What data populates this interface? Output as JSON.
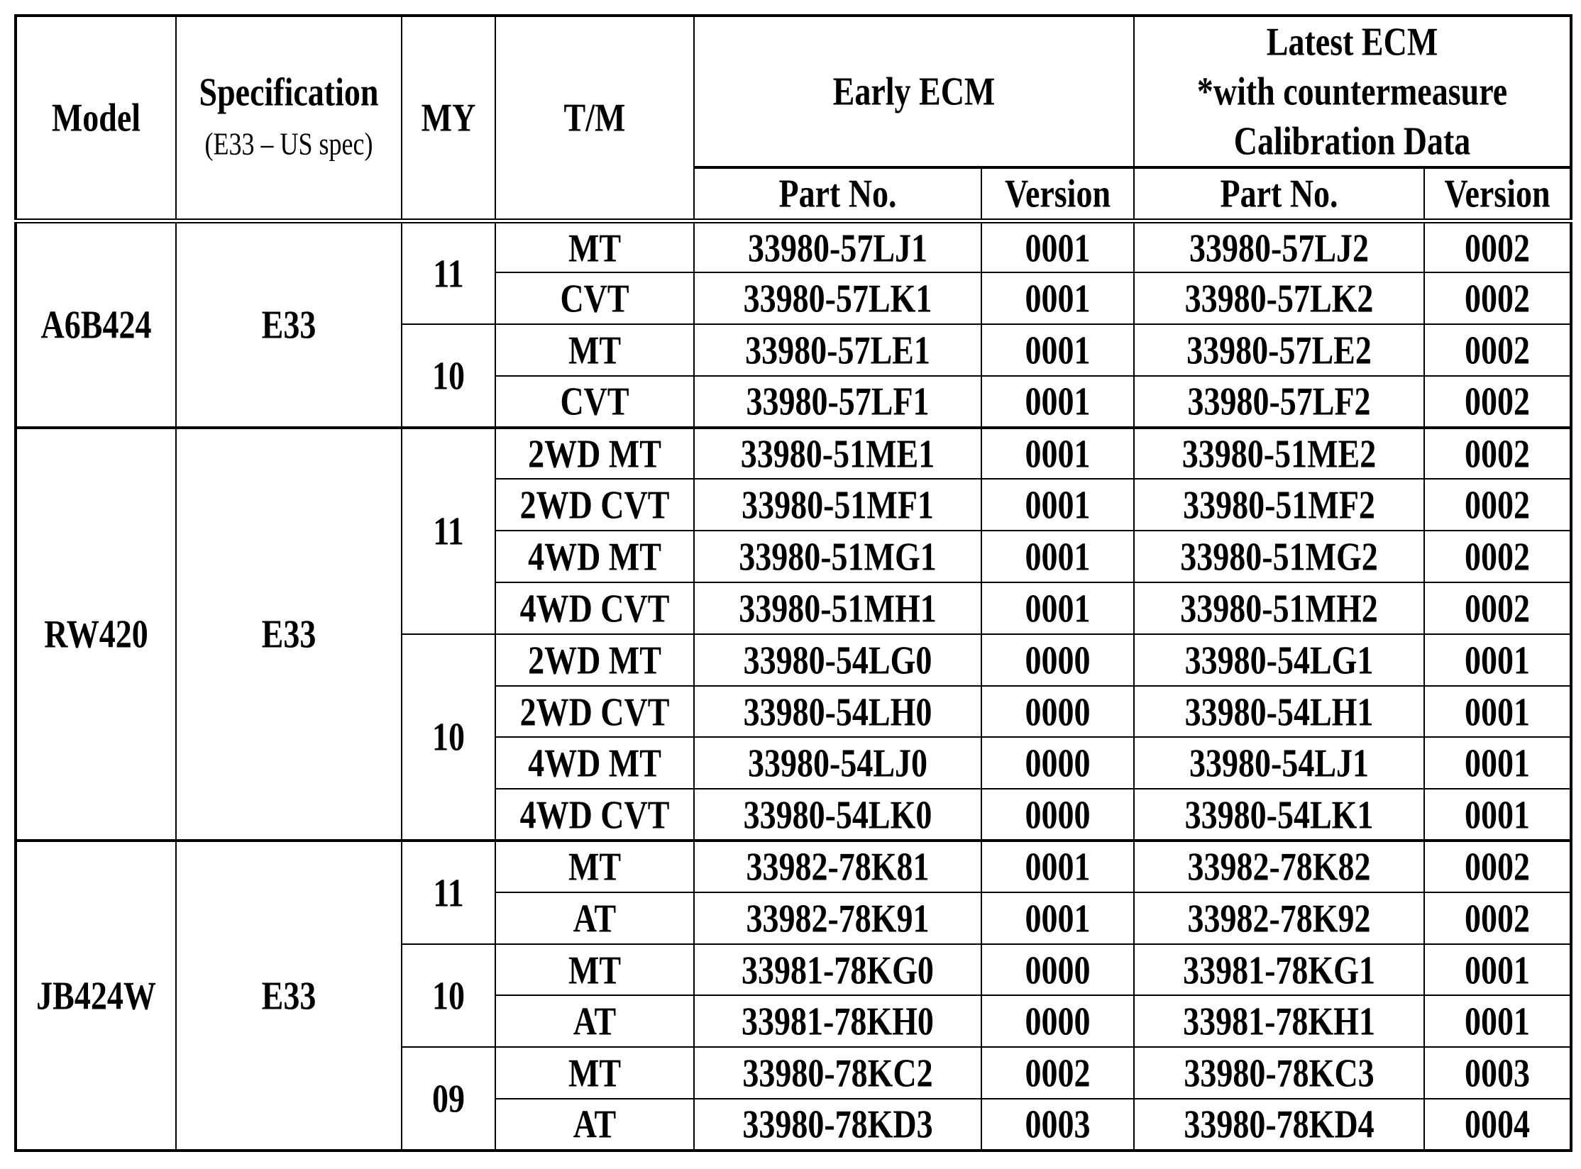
{
  "headers": {
    "model": "Model",
    "specification": "Specification",
    "specification_note": "(E33 – US spec)",
    "my": "MY",
    "tm": "T/M",
    "early_ecm": "Early ECM",
    "latest_ecm_line1": "Latest ECM",
    "latest_ecm_line2": "*with countermeasure",
    "latest_ecm_line3": "Calibration Data",
    "part_no": "Part No.",
    "version": "Version"
  },
  "models": [
    {
      "model": "A6B424",
      "spec": "E33",
      "years": [
        {
          "my": "11",
          "rows": [
            {
              "tm": "MT",
              "early_part": "33980-57LJ1",
              "early_ver": "0001",
              "latest_part": "33980-57LJ2",
              "latest_ver": "0002"
            },
            {
              "tm": "CVT",
              "early_part": "33980-57LK1",
              "early_ver": "0001",
              "latest_part": "33980-57LK2",
              "latest_ver": "0002"
            }
          ]
        },
        {
          "my": "10",
          "rows": [
            {
              "tm": "MT",
              "early_part": "33980-57LE1",
              "early_ver": "0001",
              "latest_part": "33980-57LE2",
              "latest_ver": "0002"
            },
            {
              "tm": "CVT",
              "early_part": "33980-57LF1",
              "early_ver": "0001",
              "latest_part": "33980-57LF2",
              "latest_ver": "0002"
            }
          ]
        }
      ]
    },
    {
      "model": "RW420",
      "spec": "E33",
      "years": [
        {
          "my": "11",
          "rows": [
            {
              "tm": "2WD MT",
              "early_part": "33980-51ME1",
              "early_ver": "0001",
              "latest_part": "33980-51ME2",
              "latest_ver": "0002"
            },
            {
              "tm": "2WD CVT",
              "early_part": "33980-51MF1",
              "early_ver": "0001",
              "latest_part": "33980-51MF2",
              "latest_ver": "0002"
            },
            {
              "tm": "4WD MT",
              "early_part": "33980-51MG1",
              "early_ver": "0001",
              "latest_part": "33980-51MG2",
              "latest_ver": "0002"
            },
            {
              "tm": "4WD CVT",
              "early_part": "33980-51MH1",
              "early_ver": "0001",
              "latest_part": "33980-51MH2",
              "latest_ver": "0002"
            }
          ]
        },
        {
          "my": "10",
          "rows": [
            {
              "tm": "2WD MT",
              "early_part": "33980-54LG0",
              "early_ver": "0000",
              "latest_part": "33980-54LG1",
              "latest_ver": "0001"
            },
            {
              "tm": "2WD CVT",
              "early_part": "33980-54LH0",
              "early_ver": "0000",
              "latest_part": "33980-54LH1",
              "latest_ver": "0001"
            },
            {
              "tm": "4WD MT",
              "early_part": "33980-54LJ0",
              "early_ver": "0000",
              "latest_part": "33980-54LJ1",
              "latest_ver": "0001"
            },
            {
              "tm": "4WD CVT",
              "early_part": "33980-54LK0",
              "early_ver": "0000",
              "latest_part": "33980-54LK1",
              "latest_ver": "0001"
            }
          ]
        }
      ]
    },
    {
      "model": "JB424W",
      "spec": "E33",
      "years": [
        {
          "my": "11",
          "rows": [
            {
              "tm": "MT",
              "early_part": "33982-78K81",
              "early_ver": "0001",
              "latest_part": "33982-78K82",
              "latest_ver": "0002"
            },
            {
              "tm": "AT",
              "early_part": "33982-78K91",
              "early_ver": "0001",
              "latest_part": "33982-78K92",
              "latest_ver": "0002"
            }
          ]
        },
        {
          "my": "10",
          "rows": [
            {
              "tm": "MT",
              "early_part": "33981-78KG0",
              "early_ver": "0000",
              "latest_part": "33981-78KG1",
              "latest_ver": "0001"
            },
            {
              "tm": "AT",
              "early_part": "33981-78KH0",
              "early_ver": "0000",
              "latest_part": "33981-78KH1",
              "latest_ver": "0001"
            }
          ]
        },
        {
          "my": "09",
          "rows": [
            {
              "tm": "MT",
              "early_part": "33980-78KC2",
              "early_ver": "0002",
              "latest_part": "33980-78KC3",
              "latest_ver": "0003"
            },
            {
              "tm": "AT",
              "early_part": "33980-78KD3",
              "early_ver": "0003",
              "latest_part": "33980-78KD4",
              "latest_ver": "0004"
            }
          ]
        }
      ]
    }
  ]
}
